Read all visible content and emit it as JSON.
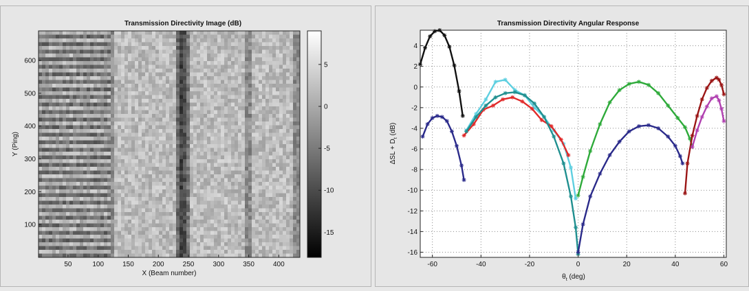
{
  "colors": {
    "panel_bg": "#e6e6e6",
    "plot_bg": "#ffffff",
    "grid": "#8a8a8a",
    "series_dark_blue": "#2a2a8a",
    "series_black": "#111111",
    "series_cyan": "#5ecfe0",
    "series_red": "#e02a2a",
    "series_teal": "#1f8f8f",
    "series_green": "#2eaa3a",
    "series_dark_red": "#9a1515",
    "series_purple": "#b040b0"
  },
  "chart_data": [
    {
      "type": "heatmap",
      "title": "Transmission Directivity Image (dB)",
      "xlabel": "X (Beam number)",
      "ylabel": "Y (Ping)",
      "xlim": [
        1,
        435
      ],
      "ylim": [
        0,
        690
      ],
      "xticks": [
        50,
        100,
        150,
        200,
        250,
        300,
        350,
        400
      ],
      "yticks": [
        100,
        200,
        300,
        400,
        500,
        600
      ],
      "colormap": "gray",
      "clim": [
        -18,
        9
      ],
      "colorbar_ticks": [
        5,
        0,
        -5,
        -10,
        -15
      ],
      "colorbar_tick_labels": [
        "5",
        "0",
        "-5",
        "-10",
        "-15"
      ],
      "dark_vertical_band_x": 240,
      "bright_column_bands_x": [
        [
          125,
          230
        ],
        [
          255,
          345
        ],
        [
          355,
          425
        ]
      ]
    },
    {
      "type": "scatter",
      "title": "Transmission Directivity Angular Response",
      "xlabel_main": "θ",
      "xlabel_sub": "t",
      "xlabel_rest": " (deg)",
      "ylabel_main": "ΔSL + D",
      "ylabel_sub": "t",
      "ylabel_rest": " (dB)",
      "xlim": [
        -65,
        61
      ],
      "ylim": [
        -16.5,
        5.5
      ],
      "xticks": [
        -60,
        -40,
        -20,
        0,
        20,
        40,
        60
      ],
      "yticks": [
        4,
        2,
        0,
        -2,
        -4,
        -6,
        -8,
        -10,
        -12,
        -14,
        -16
      ],
      "grid": true,
      "series": [
        {
          "color": "series_dark_blue",
          "x": [
            -64,
            -62,
            -60,
            -58,
            -56,
            -54,
            -52,
            -50,
            -48,
            -47
          ],
          "y": [
            -4.8,
            -3.6,
            -3.0,
            -2.8,
            -2.9,
            -3.3,
            -4.3,
            -5.7,
            -7.6,
            -9.0
          ]
        },
        {
          "color": "series_black",
          "x": [
            -65,
            -63,
            -61,
            -59,
            -57,
            -55,
            -53,
            -51,
            -49,
            -47.5
          ],
          "y": [
            2.2,
            3.8,
            4.9,
            5.4,
            5.5,
            5.0,
            3.9,
            2.1,
            -0.4,
            -2.8
          ]
        },
        {
          "color": "series_cyan",
          "x": [
            -46,
            -42,
            -38,
            -34,
            -30,
            -26,
            -22,
            -18,
            -14,
            -10,
            -6,
            -3,
            -1
          ],
          "y": [
            -4.2,
            -2.6,
            -1.2,
            0.5,
            0.7,
            -0.3,
            -0.8,
            -2.0,
            -2.9,
            -4.2,
            -5.5,
            -7.8,
            -10.8
          ]
        },
        {
          "color": "series_red",
          "x": [
            -47,
            -43,
            -39,
            -35,
            -31,
            -27,
            -23,
            -19,
            -15,
            -11,
            -7,
            -4
          ],
          "y": [
            -4.7,
            -3.6,
            -2.2,
            -1.8,
            -1.2,
            -1.0,
            -1.4,
            -2.1,
            -3.2,
            -3.8,
            -5.1,
            -6.6
          ]
        },
        {
          "color": "series_teal",
          "x": [
            -46,
            -42,
            -38,
            -34,
            -30,
            -26,
            -22,
            -18,
            -14,
            -10,
            -6,
            -3,
            -1,
            0
          ],
          "y": [
            -4.3,
            -2.9,
            -1.8,
            -1.0,
            -0.6,
            -0.5,
            -0.8,
            -1.6,
            -2.9,
            -4.8,
            -7.4,
            -10.6,
            -13.6,
            -16.2
          ]
        },
        {
          "color": "series_green",
          "x": [
            0,
            2,
            5,
            9,
            13,
            17,
            21,
            25,
            29,
            33,
            37,
            41,
            44,
            46,
            47
          ],
          "y": [
            -10.5,
            -8.7,
            -6.2,
            -3.6,
            -1.5,
            -0.3,
            0.3,
            0.5,
            0.2,
            -0.6,
            -1.8,
            -3.0,
            -3.9,
            -5.0,
            -5.8
          ]
        },
        {
          "color": "series_dark_blue",
          "x": [
            0,
            2,
            5,
            9,
            13,
            17,
            21,
            25,
            29,
            33,
            37,
            40,
            42,
            43
          ],
          "y": [
            -16.0,
            -13.3,
            -10.6,
            -8.4,
            -6.6,
            -5.3,
            -4.3,
            -3.8,
            -3.7,
            -4.0,
            -4.8,
            -5.7,
            -6.7,
            -7.4
          ]
        },
        {
          "color": "series_dark_red",
          "x": [
            44,
            45,
            47,
            49,
            51,
            53,
            55,
            57,
            58,
            59,
            60
          ],
          "y": [
            -10.3,
            -7.4,
            -4.7,
            -2.8,
            -1.2,
            -0.1,
            0.6,
            0.9,
            0.7,
            0.2,
            -0.7
          ]
        },
        {
          "color": "series_purple",
          "x": [
            47,
            49,
            51,
            53,
            55,
            57,
            58,
            59,
            60
          ],
          "y": [
            -5.8,
            -4.2,
            -2.9,
            -1.9,
            -1.1,
            -0.9,
            -1.3,
            -2.1,
            -3.3
          ]
        }
      ]
    }
  ]
}
